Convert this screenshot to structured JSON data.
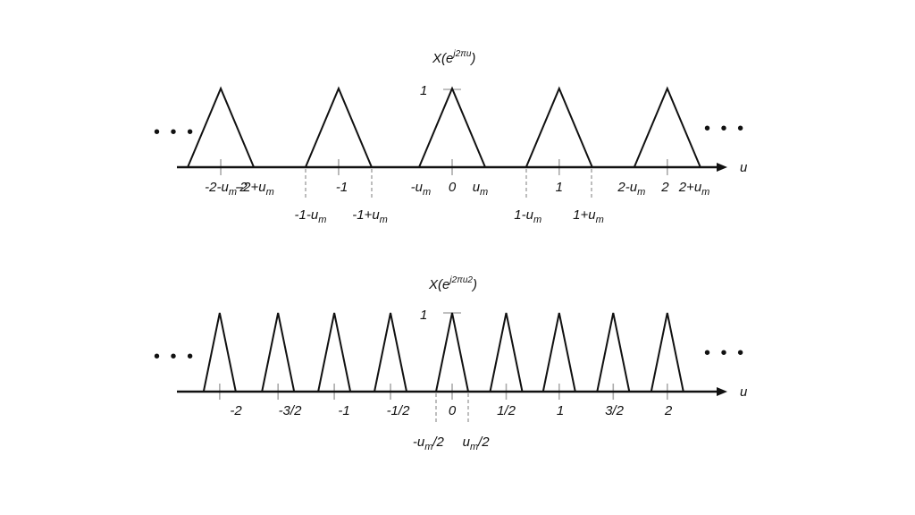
{
  "colors": {
    "line": "#111111",
    "tick": "#aaaaaa",
    "dashed": "#9a9a9a"
  },
  "top": {
    "title_base": "X(e",
    "title_sup": "j2πu",
    "title_close": ")",
    "peak_label": "1",
    "axis_label": "u",
    "left_dots": "• • •",
    "right_dots": "• • •",
    "labels_row1": [
      {
        "main": "-2-u",
        "sub": "m",
        "u": -2.14
      },
      {
        "main": "-2",
        "sub": "",
        "u": -1.95
      },
      {
        "main": "-2+u",
        "sub": "m",
        "u": -1.81
      },
      {
        "main": "-1",
        "sub": "",
        "u": -1.02
      },
      {
        "main": "-u",
        "sub": "m",
        "u": -0.29
      },
      {
        "main": "0",
        "sub": "",
        "u": 0.0
      },
      {
        "main": "u",
        "sub": "m",
        "u": 0.26
      },
      {
        "main": "1",
        "sub": "",
        "u": 0.99
      },
      {
        "main": "2-u",
        "sub": "m",
        "u": 1.66
      },
      {
        "main": "2",
        "sub": "",
        "u": 1.97
      },
      {
        "main": "2+u",
        "sub": "m",
        "u": 2.24
      }
    ],
    "labels_row2": [
      {
        "main": "-1-u",
        "sub": "m",
        "u": -1.31
      },
      {
        "main": "-1+u",
        "sub": "m",
        "u": -0.76
      },
      {
        "main": "1-u",
        "sub": "m",
        "u": 0.7
      },
      {
        "main": "1+u",
        "sub": "m",
        "u": 1.26
      }
    ]
  },
  "bottom": {
    "title_base": "X(e",
    "title_sup": "j2πu2",
    "title_close": ")",
    "peak_label": "1",
    "axis_label": "u",
    "left_dots": "• • •",
    "right_dots": "• • •",
    "labels_row1": [
      {
        "main": "-2",
        "sub": "",
        "u": -2.0
      },
      {
        "main": "-3/2",
        "sub": "",
        "u": -1.5
      },
      {
        "main": "-1",
        "sub": "",
        "u": -1.0
      },
      {
        "main": "-1/2",
        "sub": "",
        "u": -0.5
      },
      {
        "main": "0",
        "sub": "",
        "u": 0.0
      },
      {
        "main": "1/2",
        "sub": "",
        "u": 0.5
      },
      {
        "main": "1",
        "sub": "",
        "u": 1.0
      },
      {
        "main": "3/2",
        "sub": "",
        "u": 1.5
      },
      {
        "main": "2",
        "sub": "",
        "u": 2.0
      }
    ],
    "labels_row2": [
      {
        "main": "-u",
        "sub": "m",
        "tail": "/2",
        "u": -0.22
      },
      {
        "main": "u",
        "sub": "m",
        "tail": "/2",
        "u": 0.22
      }
    ]
  }
}
